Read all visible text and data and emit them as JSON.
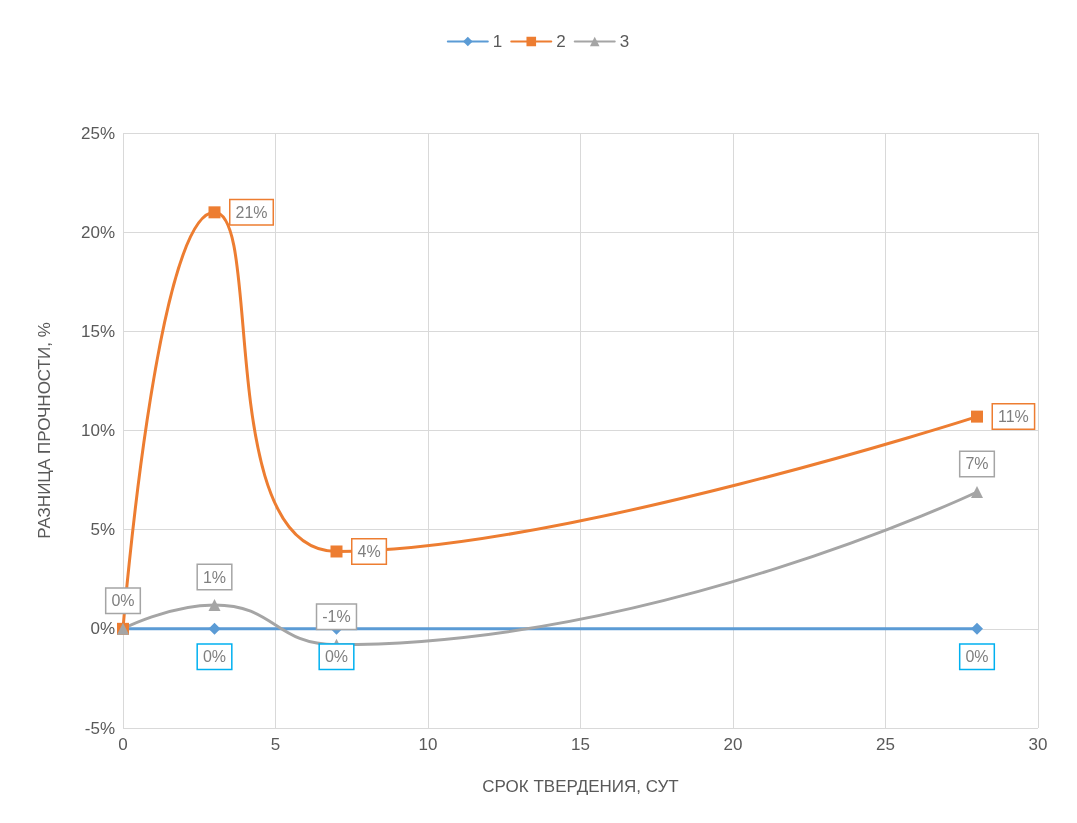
{
  "chart_data": {
    "type": "line",
    "xlabel": "СРОК ТВЕРДЕНИЯ, СУТ",
    "ylabel": "РАЗНИЦА ПРОЧНОСТИ, %",
    "x": [
      0,
      3,
      7,
      28
    ],
    "series": [
      {
        "name": "1",
        "color": "#5b9bd5",
        "marker": "diamond",
        "values": [
          0,
          0,
          0,
          0
        ],
        "value_labels": [
          null,
          "0%",
          "0%",
          "0%"
        ]
      },
      {
        "name": "2",
        "color": "#ed7d31",
        "marker": "square",
        "values": [
          0,
          21,
          3.9,
          10.7
        ],
        "value_labels": [
          null,
          "21%",
          "4%",
          "11%"
        ]
      },
      {
        "name": "3",
        "color": "#a5a5a5",
        "marker": "triangle",
        "values": [
          0,
          1.2,
          -0.8,
          6.9
        ],
        "value_labels": [
          "0%",
          "1%",
          "-1%",
          "7%"
        ]
      }
    ],
    "xlim": [
      0,
      30
    ],
    "xticks": [
      0,
      5,
      10,
      15,
      20,
      25,
      30
    ],
    "ylim": [
      -5,
      25
    ],
    "yticks": [
      {
        "value": -5,
        "label": "-5%"
      },
      {
        "value": 0,
        "label": "0%"
      },
      {
        "value": 5,
        "label": "5%"
      },
      {
        "value": 10,
        "label": "10%"
      },
      {
        "value": 15,
        "label": "15%"
      },
      {
        "value": 20,
        "label": "20%"
      },
      {
        "value": 25,
        "label": "25%"
      }
    ],
    "grid": true,
    "legend": "top",
    "line_style": "solid"
  }
}
